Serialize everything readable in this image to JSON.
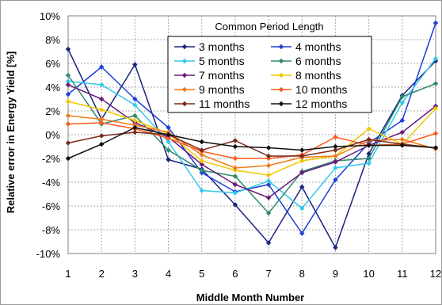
{
  "chart_data": {
    "type": "line",
    "title": "",
    "xlabel": "Middle Month Number",
    "ylabel": "Relative error in Energy Yield [%]",
    "x": [
      1,
      2,
      3,
      4,
      5,
      6,
      7,
      8,
      9,
      10,
      11,
      12
    ],
    "x_ticks": [
      "1",
      "2",
      "3",
      "4",
      "5",
      "6",
      "7",
      "8",
      "9",
      "10",
      "11",
      "12"
    ],
    "ylim": [
      -10,
      10
    ],
    "y_ticks": [
      "-10%",
      "-8%",
      "-6%",
      "-4%",
      "-2%",
      "0%",
      "2%",
      "4%",
      "6%",
      "8%",
      "10%"
    ],
    "grid": true,
    "legend_title": "Common Period Length",
    "legend_position": "top-center",
    "series": [
      {
        "name": "3 months",
        "color": "#1a237e",
        "values": [
          7.2,
          1.3,
          5.9,
          -2.1,
          -2.9,
          -5.9,
          -9.1,
          -4.4,
          -9.5,
          -1.6,
          3.3,
          6.2
        ]
      },
      {
        "name": "4 months",
        "color": "#1e3fd9",
        "values": [
          3.4,
          5.7,
          3.0,
          0.6,
          -3.2,
          -4.8,
          -4.2,
          -8.3,
          -3.8,
          -0.7,
          1.2,
          9.4
        ]
      },
      {
        "name": "5 months",
        "color": "#33c9ec",
        "values": [
          4.5,
          4.2,
          2.5,
          -0.6,
          -4.7,
          -4.9,
          -3.9,
          -6.2,
          -2.8,
          -2.4,
          2.7,
          6.4
        ]
      },
      {
        "name": "6 months",
        "color": "#2e8b6e",
        "values": [
          5.0,
          0.9,
          1.6,
          -1.3,
          -3.0,
          -3.5,
          -6.6,
          -3.1,
          -2.2,
          -2.0,
          3.2,
          4.3
        ]
      },
      {
        "name": "7 months",
        "color": "#6a1b7a",
        "values": [
          4.2,
          3.0,
          1.0,
          -0.2,
          -2.5,
          -4.2,
          -5.3,
          -3.2,
          -2.3,
          -0.9,
          0.2,
          2.4
        ]
      },
      {
        "name": "8 months",
        "color": "#f0c800",
        "values": [
          2.8,
          2.1,
          1.2,
          0.1,
          -2.2,
          -3.0,
          -3.4,
          -2.2,
          -1.8,
          0.5,
          -0.8,
          2.2
        ]
      },
      {
        "name": "9 months",
        "color": "#f07a1a",
        "values": [
          1.6,
          1.3,
          0.8,
          0.2,
          -1.7,
          -2.8,
          -2.6,
          -1.9,
          -1.8,
          -0.5,
          -0.4,
          -1.2
        ]
      },
      {
        "name": "10 months",
        "color": "#ff5a1f",
        "values": [
          0.9,
          1.0,
          0.5,
          -0.3,
          -1.4,
          -2.0,
          -2.0,
          -1.7,
          -0.2,
          -0.9,
          -0.8,
          0.1
        ]
      },
      {
        "name": "11 months",
        "color": "#7a2a1a",
        "values": [
          -0.7,
          -0.1,
          0.2,
          0.0,
          -1.3,
          -0.5,
          -1.8,
          -1.8,
          -1.3,
          -0.4,
          -0.8,
          -1.1
        ]
      },
      {
        "name": "12 months",
        "color": "#111111",
        "values": [
          -2.0,
          -0.8,
          0.6,
          0.0,
          -0.6,
          -1.0,
          -1.1,
          -1.3,
          -1.0,
          -0.9,
          -0.9,
          -1.1
        ]
      }
    ]
  }
}
